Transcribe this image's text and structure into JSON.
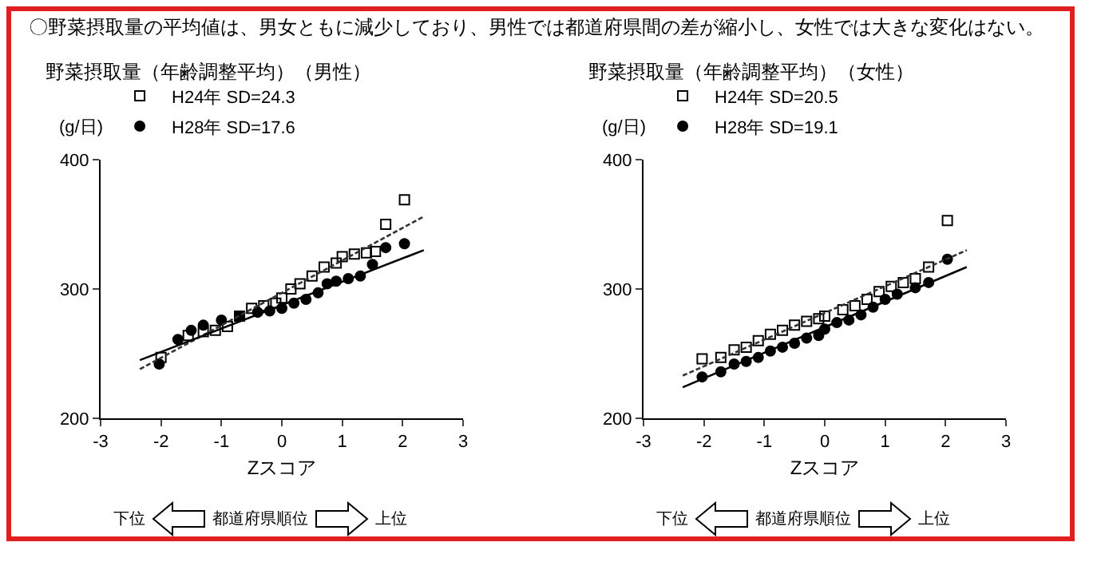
{
  "chart_data": [
    {
      "type": "scatter",
      "title": "野菜摂取量（年齢調整平均）（男性）",
      "xlabel": "Zスコア",
      "ylabel": "(g/日)",
      "xlim": [
        -3,
        3
      ],
      "xticks": [
        -3,
        -2,
        -1,
        0,
        1,
        2,
        3
      ],
      "ylim": [
        200,
        400
      ],
      "yticks": [
        200,
        300,
        400
      ],
      "grid": false,
      "legend": "top left",
      "annotations": [
        "〇野菜摂取量の平均値は、男女ともに減少しており、男性では都道府県間の差が縮小し、女性では大きな変化はない。",
        "下位",
        "都道府県順位",
        "上位"
      ],
      "series": [
        {
          "name": "H24年 SD=24.3",
          "color": "#000000",
          "marker": "square",
          "x": [
            -2.0,
            -1.55,
            -1.3,
            -1.1,
            -0.9,
            -0.7,
            -0.5,
            -0.3,
            -0.1,
            0,
            0.15,
            0.3,
            0.5,
            0.7,
            0.9,
            1.0,
            1.2,
            1.4,
            1.55,
            1.72,
            2.03
          ],
          "values": [
            247,
            264,
            267,
            268,
            271,
            279,
            285,
            287,
            289,
            293,
            300,
            304,
            310,
            317,
            320,
            325,
            327,
            328,
            329,
            350,
            369
          ]
        },
        {
          "name": "H28年 SD=17.6",
          "color": "#000000",
          "marker": "circle",
          "x": [
            -2.03,
            -1.72,
            -1.5,
            -1.3,
            -1.0,
            -0.7,
            -0.4,
            -0.2,
            0,
            0.2,
            0.4,
            0.6,
            0.75,
            0.9,
            1.1,
            1.3,
            1.5,
            1.72,
            2.03
          ],
          "values": [
            242,
            261,
            268,
            272,
            276,
            279,
            282,
            283,
            285,
            289,
            292,
            297,
            304,
            306,
            308,
            310,
            319,
            332,
            335
          ]
        },
        {
          "type": "line",
          "color": "#333333",
          "line_style": "dashed",
          "marker": "none",
          "x": [
            -2.35,
            2.35
          ],
          "values": [
            238,
            356
          ]
        },
        {
          "type": "line",
          "color": "#000000",
          "line_style": "solid",
          "marker": "none",
          "x": [
            -2.35,
            2.35
          ],
          "values": [
            245,
            330
          ]
        }
      ]
    },
    {
      "type": "scatter",
      "title": "野菜摂取量（年齢調整平均）（女性）",
      "xlabel": "Zスコア",
      "ylabel": "(g/日)",
      "xlim": [
        -3,
        3
      ],
      "xticks": [
        -3,
        -2,
        -1,
        0,
        1,
        2,
        3
      ],
      "ylim": [
        200,
        400
      ],
      "yticks": [
        200,
        300,
        400
      ],
      "grid": false,
      "legend": "top left",
      "annotations": [
        "下位",
        "都道府県順位",
        "上位"
      ],
      "series": [
        {
          "name": "H24年 SD=20.5",
          "color": "#000000",
          "marker": "square",
          "x": [
            -2.03,
            -1.72,
            -1.5,
            -1.3,
            -1.1,
            -0.9,
            -0.7,
            -0.5,
            -0.3,
            -0.1,
            0,
            0.3,
            0.5,
            0.7,
            0.9,
            1.1,
            1.3,
            1.5,
            1.72,
            2.03
          ],
          "values": [
            246,
            247,
            253,
            255,
            260,
            265,
            268,
            272,
            275,
            277,
            279,
            284,
            287,
            292,
            298,
            302,
            305,
            308,
            317,
            353
          ]
        },
        {
          "name": "H28年 SD=19.1",
          "color": "#000000",
          "marker": "circle",
          "x": [
            -2.03,
            -1.72,
            -1.5,
            -1.3,
            -1.1,
            -0.9,
            -0.7,
            -0.5,
            -0.3,
            -0.1,
            0,
            0.2,
            0.4,
            0.6,
            0.8,
            1.0,
            1.2,
            1.5,
            1.72,
            2.03
          ],
          "values": [
            232,
            236,
            242,
            244,
            247,
            252,
            255,
            258,
            262,
            264,
            269,
            274,
            276,
            280,
            286,
            292,
            296,
            301,
            305,
            323
          ]
        },
        {
          "type": "line",
          "color": "#333333",
          "line_style": "dashed",
          "marker": "none",
          "x": [
            -2.35,
            2.35
          ],
          "values": [
            233,
            330
          ]
        },
        {
          "type": "line",
          "color": "#000000",
          "line_style": "solid",
          "marker": "none",
          "x": [
            -2.35,
            2.35
          ],
          "values": [
            224,
            317
          ]
        }
      ]
    }
  ]
}
